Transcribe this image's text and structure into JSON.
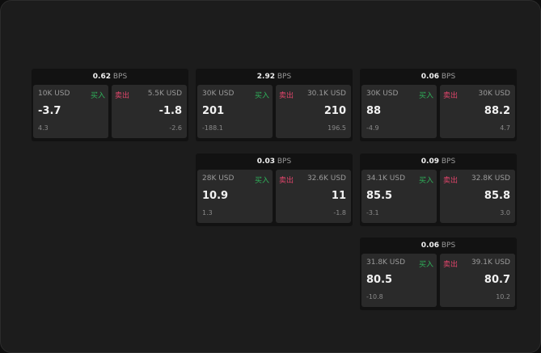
{
  "labels": {
    "buy": "买入",
    "sell": "卖出",
    "unit": "BPS"
  },
  "colors": {
    "buy": "#2fb25a",
    "sell": "#e0456b"
  },
  "panels": [
    {
      "bps": "0.62",
      "bid_qty": "10K USD",
      "bid": "-3.7",
      "bid_chg": "4.3",
      "ask_qty": "5.5K USD",
      "ask": "-1.8",
      "ask_chg": "-2.6"
    },
    {
      "bps": "2.92",
      "bid_qty": "30K USD",
      "bid": "201",
      "bid_chg": "-188.1",
      "ask_qty": "30.1K USD",
      "ask": "210",
      "ask_chg": "196.5"
    },
    {
      "bps": "0.06",
      "bid_qty": "30K USD",
      "bid": "88",
      "bid_chg": "-4.9",
      "ask_qty": "30K USD",
      "ask": "88.2",
      "ask_chg": "4.7"
    },
    {
      "bps": "0.03",
      "bid_qty": "28K USD",
      "bid": "10.9",
      "bid_chg": "1.3",
      "ask_qty": "32.6K USD",
      "ask": "11",
      "ask_chg": "-1.8"
    },
    {
      "bps": "0.09",
      "bid_qty": "34.1K USD",
      "bid": "85.5",
      "bid_chg": "-3.1",
      "ask_qty": "32.8K USD",
      "ask": "85.8",
      "ask_chg": "3.0"
    },
    {
      "bps": "0.06",
      "bid_qty": "31.8K USD",
      "bid": "80.5",
      "bid_chg": "-10.8",
      "ask_qty": "39.1K USD",
      "ask": "80.7",
      "ask_chg": "10.2"
    }
  ]
}
